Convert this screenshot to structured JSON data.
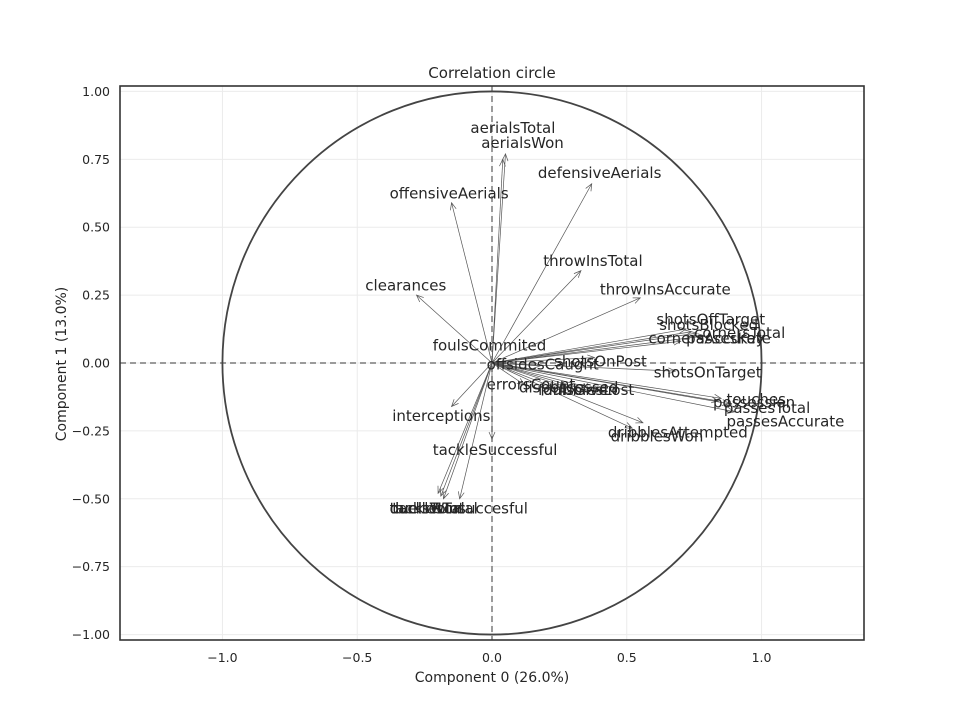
{
  "chart_data": {
    "type": "scatter",
    "subtype": "correlation-circle",
    "title": "Correlation circle",
    "xlabel": "Component 0 (26.0%)",
    "ylabel": "Component 1 (13.0%)",
    "xlim": [
      -1.38,
      1.38
    ],
    "ylim": [
      -1.02,
      1.02
    ],
    "xticks": [
      -1.0,
      -0.5,
      0.0,
      0.5,
      1.0
    ],
    "xtick_labels": [
      "−1.0",
      "−0.5",
      "0.0",
      "0.5",
      "1.0"
    ],
    "yticks": [
      -1.0,
      -0.75,
      -0.5,
      -0.25,
      0.0,
      0.25,
      0.5,
      0.75,
      1.0
    ],
    "ytick_labels": [
      "−1.00",
      "−0.75",
      "−0.50",
      "−0.25",
      "0.00",
      "0.25",
      "0.50",
      "0.75",
      "1.00"
    ],
    "grid": true,
    "unit_circle": true,
    "variables": [
      {
        "name": "aerialsTotal",
        "x": 0.04,
        "y": 0.75,
        "lx": -0.08,
        "ly": 0.865
      },
      {
        "name": "aerialsWon",
        "x": 0.05,
        "y": 0.77,
        "lx": -0.04,
        "ly": 0.81
      },
      {
        "name": "defensiveAerials",
        "x": 0.37,
        "y": 0.66,
        "lx": 0.17,
        "ly": 0.7
      },
      {
        "name": "offensiveAerials",
        "x": -0.15,
        "y": 0.59,
        "lx": -0.38,
        "ly": 0.625
      },
      {
        "name": "throwInsTotal",
        "x": 0.33,
        "y": 0.34,
        "lx": 0.19,
        "ly": 0.375
      },
      {
        "name": "throwInsAccurate",
        "x": 0.55,
        "y": 0.24,
        "lx": 0.4,
        "ly": 0.27
      },
      {
        "name": "clearances",
        "x": -0.28,
        "y": 0.25,
        "lx": -0.47,
        "ly": 0.285
      },
      {
        "name": "foulsCommited",
        "x": 0.0,
        "y": 0.0,
        "lx": -0.22,
        "ly": 0.065
      },
      {
        "name": "shotsOffTarget",
        "x": 0.72,
        "y": 0.125,
        "lx": 0.61,
        "ly": 0.16
      },
      {
        "name": "shotsBlocked",
        "x": 0.74,
        "y": 0.115,
        "lx": 0.62,
        "ly": 0.14
      },
      {
        "name": "cornersTotal",
        "x": 0.76,
        "y": 0.11,
        "lx": 0.75,
        "ly": 0.11
      },
      {
        "name": "passesKey",
        "x": 0.79,
        "y": 0.1,
        "lx": 0.72,
        "ly": 0.09
      },
      {
        "name": "cornersAccurate",
        "x": 0.7,
        "y": 0.08,
        "lx": 0.58,
        "ly": 0.09
      },
      {
        "name": "shotsOnPost",
        "x": 0.38,
        "y": 0.02,
        "lx": 0.23,
        "ly": 0.005
      },
      {
        "name": "offsidesCaught",
        "x": 0.18,
        "y": -0.01,
        "lx": -0.02,
        "ly": -0.005
      },
      {
        "name": "shotsOnTarget",
        "x": 0.68,
        "y": -0.03,
        "lx": 0.6,
        "ly": -0.035
      },
      {
        "name": "errorsCount",
        "x": 0.12,
        "y": -0.08,
        "lx": -0.02,
        "ly": -0.08
      },
      {
        "name": "dispossessed",
        "x": 0.28,
        "y": -0.09,
        "lx": 0.1,
        "ly": -0.09
      },
      {
        "name": "dribblesLost",
        "x": 0.4,
        "y": -0.1,
        "lx": 0.19,
        "ly": -0.1
      },
      {
        "name": "foulsGiven",
        "x": 0.35,
        "y": -0.1,
        "lx": 0.17,
        "ly": -0.1
      },
      {
        "name": "touches",
        "x": 0.85,
        "y": -0.13,
        "lx": 0.87,
        "ly": -0.135
      },
      {
        "name": "possession",
        "x": 0.84,
        "y": -0.14,
        "lx": 0.82,
        "ly": -0.145
      },
      {
        "name": "passesTotal",
        "x": 0.88,
        "y": -0.15,
        "lx": 0.86,
        "ly": -0.165
      },
      {
        "name": "passesAccurate",
        "x": 0.9,
        "y": -0.18,
        "lx": 0.87,
        "ly": -0.215
      },
      {
        "name": "dribblesAttempted",
        "x": 0.56,
        "y": -0.22,
        "lx": 0.43,
        "ly": -0.255
      },
      {
        "name": "dribblesWon",
        "x": 0.52,
        "y": -0.24,
        "lx": 0.44,
        "ly": -0.27
      },
      {
        "name": "interceptions",
        "x": -0.15,
        "y": -0.16,
        "lx": -0.37,
        "ly": -0.195
      },
      {
        "name": "tackleSuccessful",
        "x": 0.0,
        "y": -0.28,
        "lx": -0.22,
        "ly": -0.32
      },
      {
        "name": "tackleUnsuccesful",
        "x": -0.12,
        "y": -0.5,
        "lx": -0.37,
        "ly": -0.535
      },
      {
        "name": "tacklesTotal",
        "x": -0.19,
        "y": -0.49,
        "lx": -0.38,
        "ly": -0.535
      },
      {
        "name": "duelsTotal",
        "x": -0.18,
        "y": -0.5,
        "lx": -0.38,
        "ly": -0.535
      },
      {
        "name": "duelsWon",
        "x": -0.2,
        "y": -0.48,
        "lx": -0.38,
        "ly": -0.535
      }
    ]
  }
}
